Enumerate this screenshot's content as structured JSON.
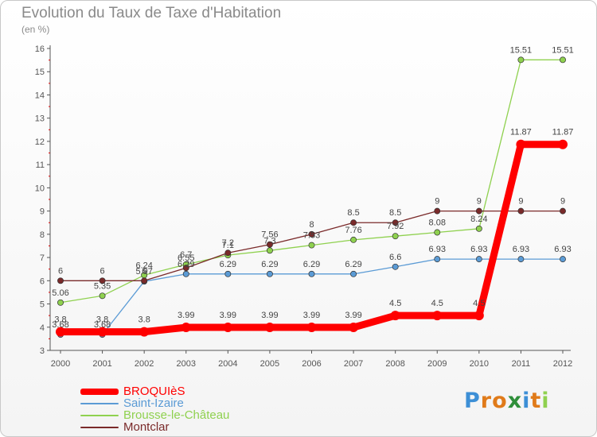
{
  "chart_data": {
    "type": "line",
    "title": "Evolution du Taux de Taxe d'Habitation",
    "subtitle": "(en %)",
    "xlabel": "",
    "ylabel": "",
    "categories": [
      "2000",
      "2001",
      "2002",
      "2003",
      "2004",
      "2005",
      "2006",
      "2007",
      "2008",
      "2009",
      "2010",
      "2011",
      "2012"
    ],
    "ylim": [
      3,
      16
    ],
    "yticks": [
      "3",
      "4",
      "5",
      "6",
      "7",
      "8",
      "9",
      "10",
      "11",
      "12",
      "13",
      "14",
      "15",
      "16"
    ],
    "grid": false,
    "legend_position": "bottom-left",
    "series": [
      {
        "name": "BROQUIèS",
        "color": "#ff0000",
        "emphasis": true,
        "values": [
          3.8,
          3.8,
          3.8,
          3.99,
          3.99,
          3.99,
          3.99,
          3.99,
          4.5,
          4.5,
          4.5,
          11.87,
          11.87
        ],
        "labels": [
          "3.8",
          "3.8",
          "3.8",
          "3.99",
          "3.99",
          "3.99",
          "3.99",
          "3.99",
          "4.5",
          "4.5",
          "4.5",
          "11.87",
          "11.87"
        ]
      },
      {
        "name": "Saint-Izaire",
        "color": "#5b9bd5",
        "emphasis": false,
        "values": [
          3.68,
          3.68,
          5.97,
          6.29,
          6.29,
          6.29,
          6.29,
          6.29,
          6.6,
          6.93,
          6.93,
          6.93,
          6.93
        ],
        "labels": [
          "3.68",
          "3.68",
          "5.97",
          "6.29",
          "6.29",
          "6.29",
          "6.29",
          "6.29",
          "6.6",
          "6.93",
          "6.93",
          "6.93",
          "6.93"
        ]
      },
      {
        "name": "Brousse-le-Château",
        "color": "#8fd14f",
        "emphasis": false,
        "values": [
          5.06,
          5.35,
          6.24,
          6.7,
          7.1,
          7.3,
          7.53,
          7.76,
          7.92,
          8.08,
          8.24,
          15.51,
          15.51
        ],
        "labels": [
          "5.06",
          "5.35",
          "6.24",
          "6.7",
          "7.1",
          "7.3",
          "7.53",
          "7.76",
          "7.92",
          "8.08",
          "8.24",
          "15.51",
          "15.51"
        ]
      },
      {
        "name": "Montclar",
        "color": "#7a2a2a",
        "emphasis": false,
        "values": [
          6,
          6,
          6,
          6.55,
          7.2,
          7.56,
          8,
          8.5,
          8.5,
          9,
          9,
          9,
          9
        ],
        "labels": [
          "6",
          "6",
          "6",
          "6.55",
          "7.2",
          "7.56",
          "8",
          "8.5",
          "8.5",
          "9",
          "9",
          "9",
          "9"
        ]
      }
    ]
  },
  "brand": {
    "logo_text": "Proxiti",
    "letter_colors": [
      "#3d8fd6",
      "#e07b1a",
      "#e07b1a",
      "#2f8f3a",
      "#3d8fd6",
      "#e07b1a",
      "#8fd14f"
    ]
  }
}
